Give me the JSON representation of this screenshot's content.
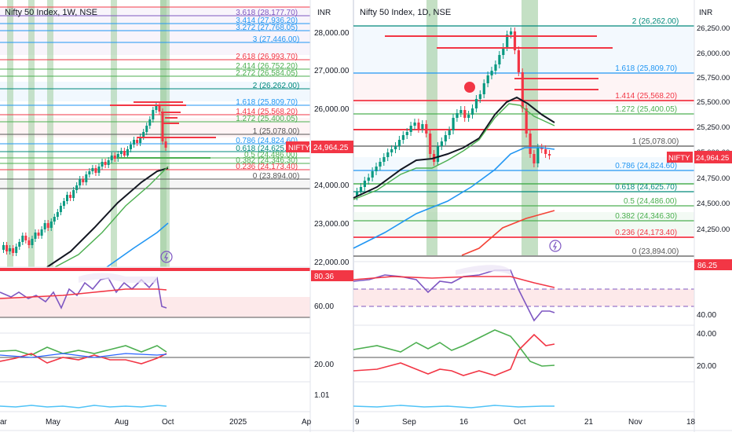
{
  "colors": {
    "up": "#089981",
    "down": "#f23645",
    "green_band": "#9ccc9c",
    "fib_red": "#f23645",
    "ma_black": "#131722",
    "ma_blue": "#2196f3",
    "ma_green": "#4caf50",
    "ma_red": "#f44336",
    "rsi_purple": "#7e57c2",
    "price_bg": "#f23645"
  },
  "left": {
    "title": "Nifty 50 Index, 1W, NSE",
    "currency": "INR",
    "price_tag": "24,964.25",
    "symbol_tag": "NIFTY",
    "rsi_tag": "80.36",
    "fib_levels": [
      {
        "label": "3.618 (28,177.70)",
        "color": "#7e57c2"
      },
      {
        "label": "3.414 (27,936.20)",
        "color": "#2196f3"
      },
      {
        "label": "3.272 (27,768.05)",
        "color": "#2196f3"
      },
      {
        "label": "3 (27,446.00)",
        "color": "#2196f3"
      },
      {
        "label": "2.618 (26,993.70)",
        "color": "#f23645"
      },
      {
        "label": "2.414 (26,752.20)",
        "color": "#4caf50"
      },
      {
        "label": "2.272 (26,584.05)",
        "color": "#4caf50"
      },
      {
        "label": "2 (26,262.00)",
        "color": "#00897b"
      },
      {
        "label": "1.618 (25,809.70)",
        "color": "#2196f3"
      },
      {
        "label": "1.414 (25,568.20)",
        "color": "#f23645"
      },
      {
        "label": "1.272 (25,400.05)",
        "color": "#4caf50"
      },
      {
        "label": "1 (25,078.00)",
        "color": "#555555"
      },
      {
        "label": "0.786 (24,824.60)",
        "color": "#2196f3"
      },
      {
        "label": "0.618 (24,625.70)",
        "color": "#00897b"
      },
      {
        "label": "0.5 (24,486.00)",
        "color": "#4caf50"
      },
      {
        "label": "0.382 (24,346.30)",
        "color": "#4caf50"
      },
      {
        "label": "0.236 (24,173.40)",
        "color": "#f23645"
      },
      {
        "label": "0 (23,894.00)",
        "color": "#555555"
      }
    ],
    "price_ticks": [
      "28,000.00",
      "27,000.00",
      "26,000.00",
      "25,000.00",
      "24,000.00",
      "23,000.00",
      "22,000.00"
    ],
    "rsi_ticks": [
      "60.00"
    ],
    "adx_ticks": [
      "20.00"
    ],
    "vol_ticks": [
      "1.01"
    ],
    "time_ticks": [
      "ar",
      "May",
      "Aug",
      "Oct",
      "2025",
      "Ap"
    ]
  },
  "right": {
    "title": "Nifty 50 Index, 1D, NSE",
    "currency": "INR",
    "price_tag": "24,964.25",
    "symbol_tag": "NIFTY",
    "rsi_tag": "86.25",
    "fib_levels": [
      {
        "label": "2 (26,262.00)",
        "color": "#00897b"
      },
      {
        "label": "1.618 (25,809.70)",
        "color": "#2196f3"
      },
      {
        "label": "1.414 (25,568.20)",
        "color": "#f23645"
      },
      {
        "label": "1.272 (25,400.05)",
        "color": "#4caf50"
      },
      {
        "label": "1 (25,078.00)",
        "color": "#555555"
      },
      {
        "label": "0.786 (24,824.60)",
        "color": "#2196f3"
      },
      {
        "label": "0.618 (24,625.70)",
        "color": "#00897b"
      },
      {
        "label": "0.5 (24,486.00)",
        "color": "#4caf50"
      },
      {
        "label": "0.382 (24,346.30)",
        "color": "#4caf50"
      },
      {
        "label": "0.236 (24,173.40)",
        "color": "#f23645"
      },
      {
        "label": "0 (23,894.00)",
        "color": "#555555"
      }
    ],
    "price_ticks": [
      "26,250.00",
      "26,000.00",
      "25,750.00",
      "25,500.00",
      "25,250.00",
      "25,000.00",
      "24,750.00",
      "24,500.00",
      "24,250.00"
    ],
    "rsi_ticks": [
      "40.00"
    ],
    "adx_ticks": [
      "40.00",
      "20.00"
    ],
    "time_ticks": [
      "9",
      "Sep",
      "16",
      "Oct",
      "21",
      "Nov",
      "18"
    ]
  }
}
